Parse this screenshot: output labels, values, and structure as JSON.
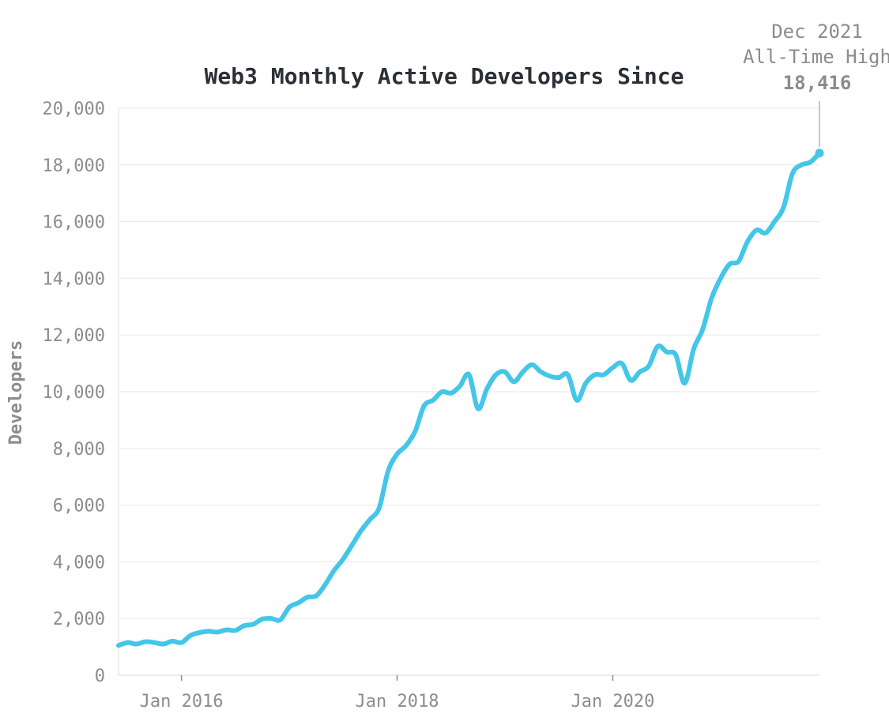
{
  "chart_data": {
    "type": "line",
    "title": "Web3 Monthly Active Developers Since",
    "xlabel": "",
    "ylabel": "Developers",
    "ylim": [
      0,
      20000
    ],
    "yticks": [
      0,
      2000,
      4000,
      6000,
      8000,
      10000,
      12000,
      14000,
      16000,
      18000,
      20000
    ],
    "ytick_labels": [
      "0",
      "2,000",
      "4,000",
      "6,000",
      "8,000",
      "10,000",
      "12,000",
      "14,000",
      "16,000",
      "18,000",
      "20,000"
    ],
    "xlim": [
      "2015-06",
      "2021-12"
    ],
    "xticks": [
      "2016-01",
      "2018-01",
      "2020-01"
    ],
    "xtick_labels": [
      "Jan 2016",
      "Jan 2018",
      "Jan 2020"
    ],
    "grid": true,
    "line_color": "#44c6e8",
    "series": [
      {
        "x": [
          "2015-06",
          "2015-07",
          "2015-08",
          "2015-09",
          "2015-10",
          "2015-11",
          "2015-12",
          "2016-01",
          "2016-02",
          "2016-03",
          "2016-04",
          "2016-05",
          "2016-06",
          "2016-07",
          "2016-08",
          "2016-09",
          "2016-10",
          "2016-11",
          "2016-12",
          "2017-01",
          "2017-02",
          "2017-03",
          "2017-04",
          "2017-05",
          "2017-06",
          "2017-07",
          "2017-08",
          "2017-09",
          "2017-10",
          "2017-11",
          "2017-12",
          "2018-01",
          "2018-02",
          "2018-03",
          "2018-04",
          "2018-05",
          "2018-06",
          "2018-07",
          "2018-08",
          "2018-09",
          "2018-10",
          "2018-11",
          "2018-12",
          "2019-01",
          "2019-02",
          "2019-03",
          "2019-04",
          "2019-05",
          "2019-06",
          "2019-07",
          "2019-08",
          "2019-09",
          "2019-10",
          "2019-11",
          "2019-12",
          "2020-01",
          "2020-02",
          "2020-03",
          "2020-04",
          "2020-05",
          "2020-06",
          "2020-07",
          "2020-08",
          "2020-09",
          "2020-10",
          "2020-11",
          "2020-12",
          "2021-01",
          "2021-02",
          "2021-03",
          "2021-04",
          "2021-05",
          "2021-06",
          "2021-07",
          "2021-08",
          "2021-09",
          "2021-10",
          "2021-11",
          "2021-12"
        ],
        "values": [
          1050,
          1150,
          1100,
          1180,
          1150,
          1100,
          1200,
          1150,
          1400,
          1500,
          1550,
          1520,
          1600,
          1580,
          1750,
          1800,
          1980,
          2000,
          1950,
          2400,
          2550,
          2750,
          2800,
          3200,
          3700,
          4100,
          4600,
          5100,
          5500,
          5900,
          7200,
          7800,
          8100,
          8600,
          9500,
          9700,
          10000,
          9950,
          10200,
          10600,
          9400,
          10100,
          10600,
          10700,
          10350,
          10700,
          10950,
          10700,
          10550,
          10500,
          10600,
          9700,
          10300,
          10600,
          10600,
          10850,
          11000,
          10400,
          10700,
          10900,
          11600,
          11400,
          11300,
          10300,
          11500,
          12200,
          13300,
          14000,
          14500,
          14600,
          15300,
          15700,
          15600,
          16000,
          16500,
          17700,
          18000,
          18100,
          18416
        ]
      }
    ],
    "annotation": {
      "line1": "Dec 2021",
      "line2": "All-Time High",
      "value": "18,416",
      "x": "2021-12",
      "y": 18416
    }
  }
}
